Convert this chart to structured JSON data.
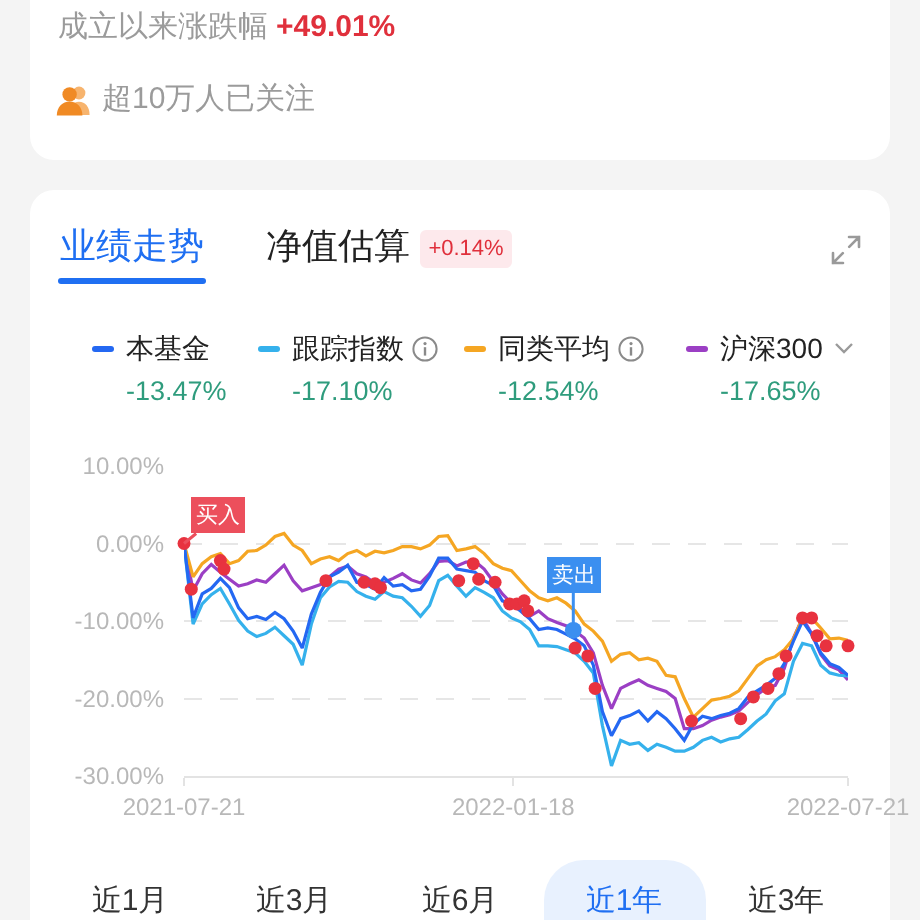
{
  "chart_data": {
    "type": "line",
    "annotations": [
      "成立以来涨跌幅",
      "+49.01%",
      "超10万人已关注",
      "业绩走势",
      "净值估算",
      "+0.14%",
      "-13.47%",
      "-17.10%",
      "-12.54%",
      "-17.65%",
      {
        "text": "买入",
        "x": "2021-07-21",
        "y": 0
      },
      {
        "text": "卖出",
        "x": "2022-02-20",
        "y": -11.2
      },
      "近1月",
      "近3月",
      "近6月",
      "近1年",
      "近3年"
    ],
    "x": [
      "2021-07-21",
      "2021-07-26",
      "2021-07-31",
      "2021-08-05",
      "2021-08-10",
      "2021-08-15",
      "2021-08-20",
      "2021-08-25",
      "2021-08-30",
      "2021-09-04",
      "2021-09-09",
      "2021-09-14",
      "2021-09-19",
      "2021-09-24",
      "2021-09-29",
      "2021-10-04",
      "2021-10-09",
      "2021-10-14",
      "2021-10-19",
      "2021-10-24",
      "2021-10-29",
      "2021-11-03",
      "2021-11-08",
      "2021-11-13",
      "2021-11-18",
      "2021-11-23",
      "2021-11-28",
      "2021-12-03",
      "2021-12-08",
      "2021-12-13",
      "2021-12-18",
      "2021-12-23",
      "2021-12-28",
      "2022-01-02",
      "2022-01-07",
      "2022-01-12",
      "2022-01-17",
      "2022-01-22",
      "2022-01-27",
      "2022-02-01",
      "2022-02-06",
      "2022-02-11",
      "2022-02-16",
      "2022-02-21",
      "2022-02-26",
      "2022-03-03",
      "2022-03-08",
      "2022-03-13",
      "2022-03-18",
      "2022-03-23",
      "2022-03-28",
      "2022-04-02",
      "2022-04-07",
      "2022-04-12",
      "2022-04-17",
      "2022-04-22",
      "2022-04-27",
      "2022-05-02",
      "2022-05-07",
      "2022-05-12",
      "2022-05-17",
      "2022-05-22",
      "2022-05-27",
      "2022-06-01",
      "2022-06-06",
      "2022-06-11",
      "2022-06-16",
      "2022-06-21",
      "2022-06-26",
      "2022-07-01",
      "2022-07-06",
      "2022-07-11",
      "2022-07-16",
      "2022-07-21"
    ],
    "series": [
      {
        "name": "本基金",
        "color": "#2468f2",
        "values": [
          0,
          -9.6,
          -6.5,
          -5.8,
          -4.5,
          -5.7,
          -8.3,
          -9.7,
          -9.4,
          -9.8,
          -8.9,
          -9.7,
          -11.3,
          -13.5,
          -9.1,
          -6.3,
          -4.3,
          -3.7,
          -2.8,
          -5.0,
          -5.3,
          -5.9,
          -4.4,
          -5.5,
          -5.3,
          -6.1,
          -5.9,
          -4.2,
          -1.9,
          -1.9,
          -3.3,
          -3.5,
          -3.7,
          -4.8,
          -5.4,
          -7.4,
          -7.8,
          -8.7,
          -9.7,
          -11.1,
          -10.9,
          -11.1,
          -11.7,
          -12.3,
          -13.2,
          -15.7,
          -21.7,
          -24.8,
          -22.6,
          -22.2,
          -21.6,
          -22.9,
          -21.7,
          -22.6,
          -23.9,
          -25.4,
          -23.3,
          -22.3,
          -22.6,
          -22.2,
          -21.9,
          -21.3,
          -19.8,
          -19.0,
          -18.3,
          -17.4,
          -15.5,
          -12.6,
          -10.0,
          -11.7,
          -14.1,
          -15.5,
          -16.0,
          -17.0
        ]
      },
      {
        "name": "跟踪指数",
        "color": "#35b1ec",
        "values": [
          0,
          -10.4,
          -7.8,
          -6.6,
          -5.8,
          -7.8,
          -9.9,
          -11.3,
          -12.0,
          -11.6,
          -10.8,
          -11.9,
          -13.0,
          -15.7,
          -10.4,
          -7.0,
          -5.6,
          -4.9,
          -5.0,
          -6.2,
          -6.8,
          -7.2,
          -6.2,
          -6.8,
          -7.0,
          -8.1,
          -9.4,
          -8.0,
          -4.8,
          -4.1,
          -5.5,
          -6.8,
          -5.7,
          -6.3,
          -7.0,
          -8.7,
          -9.6,
          -10.1,
          -11.1,
          -13.2,
          -13.2,
          -13.3,
          -13.7,
          -14.1,
          -15.2,
          -16.7,
          -23.5,
          -28.7,
          -25.4,
          -25.9,
          -25.7,
          -26.7,
          -25.9,
          -26.3,
          -26.8,
          -26.8,
          -26.3,
          -25.4,
          -25.0,
          -25.6,
          -25.2,
          -25.0,
          -24.0,
          -22.9,
          -22.0,
          -20.3,
          -19.4,
          -15.2,
          -12.9,
          -13.2,
          -15.7,
          -16.7,
          -17.0,
          -17.1
        ]
      },
      {
        "name": "同类平均",
        "color": "#f5a623",
        "values": [
          0,
          -4.3,
          -2.6,
          -1.7,
          -1.3,
          -2.6,
          -2.2,
          -1.0,
          -0.9,
          -0.2,
          0.9,
          1.3,
          -0.2,
          -0.9,
          -2.6,
          -2.0,
          -1.7,
          -2.2,
          -1.3,
          -0.9,
          -1.6,
          -1.0,
          -1.2,
          -0.9,
          -0.4,
          -0.4,
          -0.7,
          -0.2,
          0.9,
          1.0,
          -0.9,
          -0.7,
          -0.4,
          -1.3,
          -2.6,
          -3.2,
          -3.5,
          -4.8,
          -6.1,
          -7.0,
          -7.4,
          -7.0,
          -7.7,
          -8.7,
          -10.4,
          -11.3,
          -12.6,
          -15.2,
          -14.3,
          -14.1,
          -15.0,
          -14.8,
          -15.2,
          -17.0,
          -17.2,
          -20.0,
          -22.4,
          -21.3,
          -20.2,
          -20.0,
          -19.7,
          -19.0,
          -17.4,
          -15.8,
          -15.0,
          -14.6,
          -13.7,
          -12.3,
          -9.6,
          -9.6,
          -10.9,
          -12.3,
          -12.2,
          -12.5
        ]
      },
      {
        "name": "沪深300",
        "color": "#9b3fc4",
        "values": [
          0,
          -6.1,
          -3.9,
          -2.7,
          -3.7,
          -4.6,
          -5.5,
          -5.2,
          -4.7,
          -5.0,
          -3.9,
          -2.8,
          -4.8,
          -6.1,
          -5.7,
          -5.3,
          -4.3,
          -3.3,
          -2.9,
          -3.9,
          -4.3,
          -5.1,
          -5.0,
          -4.5,
          -3.9,
          -4.7,
          -5.1,
          -3.9,
          -2.3,
          -2.2,
          -2.9,
          -2.4,
          -2.3,
          -3.3,
          -4.9,
          -6.5,
          -7.7,
          -8.4,
          -9.4,
          -8.7,
          -9.7,
          -10.2,
          -10.6,
          -11.3,
          -12.2,
          -14.1,
          -18.3,
          -21.3,
          -18.7,
          -18.1,
          -17.6,
          -18.3,
          -18.7,
          -19.1,
          -20.0,
          -23.9,
          -23.9,
          -23.5,
          -22.8,
          -22.4,
          -22.1,
          -21.6,
          -20.5,
          -19.5,
          -18.7,
          -18.3,
          -16.1,
          -12.2,
          -9.6,
          -11.6,
          -14.3,
          -15.8,
          -16.3,
          -17.6
        ]
      },
      {
        "type": "scatter",
        "marker": "circle",
        "color": "#e8323f",
        "x": [
          "2021-07-21",
          "2021-07-25",
          "2021-08-10",
          "2021-08-12",
          "2021-10-07",
          "2021-10-28",
          "2021-11-03",
          "2021-11-06",
          "2021-12-19",
          "2021-12-27",
          "2021-12-30",
          "2022-01-08",
          "2022-01-16",
          "2022-01-20",
          "2022-01-24",
          "2022-01-26",
          "2022-02-21",
          "2022-02-28",
          "2022-03-04",
          "2022-04-26",
          "2022-05-23",
          "2022-05-30",
          "2022-06-07",
          "2022-06-13",
          "2022-06-17",
          "2022-06-26",
          "2022-07-01",
          "2022-07-04",
          "2022-07-09",
          "2022-07-21"
        ],
        "values": [
          0,
          -5.9,
          -2.2,
          -3.3,
          -4.8,
          -5.0,
          -5.2,
          -5.7,
          -4.8,
          -2.6,
          -4.6,
          -5.0,
          -7.8,
          -7.8,
          -7.4,
          -8.7,
          -13.5,
          -14.5,
          -18.7,
          -22.9,
          -22.6,
          -19.8,
          -18.7,
          -16.8,
          -14.5,
          -9.6,
          -9.6,
          -11.9,
          -13.2,
          -13.2
        ]
      }
    ],
    "xlim": [
      "2021-07-21",
      "2022-07-21"
    ],
    "xticks": [
      "2021-07-21",
      "2022-01-18",
      "2022-07-21"
    ],
    "ylim": [
      -30,
      10
    ],
    "yticks": [
      {
        "value": 10,
        "label": "10.00%"
      },
      {
        "value": 0,
        "label": "0.00%"
      },
      {
        "value": -10,
        "label": "-10.00%"
      },
      {
        "value": -20,
        "label": "-20.00%"
      },
      {
        "value": -30,
        "label": "-30.00%"
      }
    ],
    "grid": "y",
    "legend": "top"
  }
}
